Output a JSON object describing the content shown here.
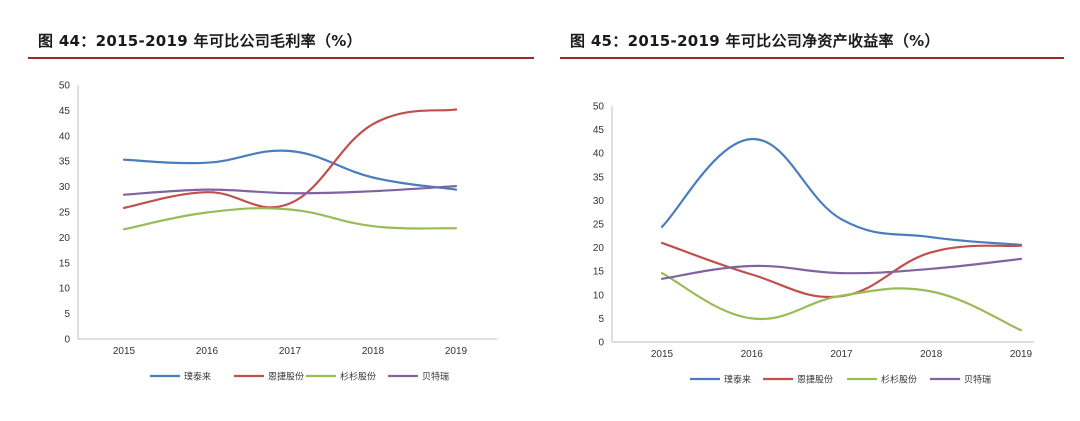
{
  "chart_data": [
    {
      "type": "line",
      "title": "图 44：2015-2019 年可比公司毛利率（%）",
      "x": [
        "2015",
        "2016",
        "2017",
        "2018",
        "2019"
      ],
      "ylim": [
        0,
        50
      ],
      "yticks": [
        0,
        5,
        10,
        15,
        20,
        25,
        30,
        35,
        40,
        45,
        50
      ],
      "grid": false,
      "legend_position": "bottom",
      "series": [
        {
          "name": "璞泰来",
          "color": "#4a7ebb",
          "values": [
            35.3,
            34.7,
            37.0,
            31.8,
            29.4
          ]
        },
        {
          "name": "恩捷股份",
          "color": "#c0504d",
          "values": [
            25.8,
            28.9,
            26.7,
            42.3,
            45.2
          ]
        },
        {
          "name": "杉杉股份",
          "color": "#9bbb59",
          "values": [
            21.6,
            24.9,
            25.5,
            22.2,
            21.8
          ]
        },
        {
          "name": "贝特瑞",
          "color": "#8064a2",
          "values": [
            28.4,
            29.4,
            28.7,
            29.1,
            30.1
          ]
        }
      ]
    },
    {
      "type": "line",
      "title": "图 45：2015-2019 年可比公司净资产收益率（%）",
      "x": [
        "2015",
        "2016",
        "2017",
        "2018",
        "2019"
      ],
      "ylim": [
        0,
        50
      ],
      "yticks": [
        0,
        5,
        10,
        15,
        20,
        25,
        30,
        35,
        40,
        45,
        50
      ],
      "grid": false,
      "legend_position": "bottom",
      "series": [
        {
          "name": "璞泰来",
          "color": "#4a7ebb",
          "values": [
            24.4,
            43.0,
            26.0,
            22.2,
            20.6
          ]
        },
        {
          "name": "恩捷股份",
          "color": "#c0504d",
          "values": [
            21.0,
            14.3,
            9.7,
            19.0,
            20.4
          ]
        },
        {
          "name": "杉杉股份",
          "color": "#9bbb59",
          "values": [
            14.6,
            5.0,
            9.8,
            10.7,
            2.5
          ]
        },
        {
          "name": "贝特瑞",
          "color": "#8064a2",
          "values": [
            13.4,
            16.1,
            14.6,
            15.5,
            17.6
          ]
        }
      ]
    }
  ]
}
